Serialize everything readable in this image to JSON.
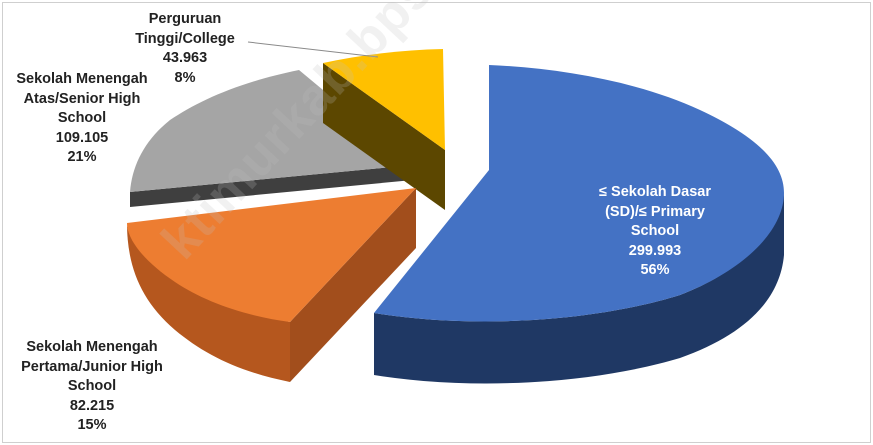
{
  "chart_data": {
    "type": "pie",
    "style": "3d-exploded",
    "slices": [
      {
        "name": "≤ Sekolah Dasar (SD)/≤ Primary School",
        "lines": [
          "≤ Sekolah Dasar",
          "(SD)/≤ Primary",
          "School"
        ],
        "value": 299993,
        "value_label": "299.993",
        "percent_label": "56%",
        "color": "#4472c4"
      },
      {
        "name": "Sekolah Menengah Pertama/Junior High School",
        "lines": [
          "Sekolah Menengah",
          "Pertama/Junior High",
          "School"
        ],
        "value": 82215,
        "value_label": "82.215",
        "percent_label": "15%",
        "color": "#ed7d31"
      },
      {
        "name": "Sekolah Menengah Atas/Senior High School",
        "lines": [
          "Sekolah Menengah",
          "Atas/Senior High",
          "School"
        ],
        "value": 109105,
        "value_label": "109.105",
        "percent_label": "21%",
        "color": "#a5a5a5"
      },
      {
        "name": "Perguruan Tinggi/College",
        "lines": [
          "Perguruan",
          "Tinggi/College"
        ],
        "value": 43963,
        "value_label": "43.963",
        "percent_label": "8%",
        "color": "#ffc000"
      }
    ]
  },
  "watermark": "ktimurkab.bps.go.id"
}
